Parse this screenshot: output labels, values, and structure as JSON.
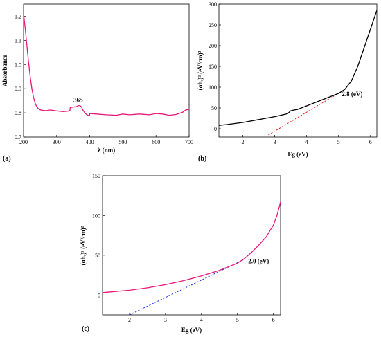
{
  "chart_data": [
    {
      "type": "line",
      "panel": "(a)",
      "xlabel": "λ (nm)",
      "ylabel": "Absorbance",
      "xlim": [
        200,
        700
      ],
      "ylim": [
        0.7,
        1.25
      ],
      "xticks": [
        "200",
        "300",
        "400",
        "500",
        "600",
        "700"
      ],
      "yticks": [
        "0.7",
        "0.8",
        "0.9",
        "1.0",
        "1.1",
        "1.2"
      ],
      "series": [
        {
          "color": "#e8177a",
          "x": [
            200,
            205,
            210,
            215,
            220,
            225,
            230,
            235,
            240,
            245,
            250,
            255,
            260,
            270,
            280,
            300,
            320,
            335,
            340,
            341,
            350,
            360,
            365,
            370,
            375,
            380,
            385,
            390,
            395,
            399,
            400,
            420,
            450,
            480,
            500,
            520,
            550,
            580,
            600,
            620,
            640,
            660,
            680,
            690,
            700
          ],
          "y": [
            1.21,
            1.15,
            1.08,
            1.01,
            0.95,
            0.9,
            0.865,
            0.84,
            0.825,
            0.817,
            0.813,
            0.811,
            0.81,
            0.809,
            0.812,
            0.808,
            0.805,
            0.807,
            0.81,
            0.822,
            0.824,
            0.826,
            0.83,
            0.83,
            0.825,
            0.81,
            0.8,
            0.793,
            0.79,
            0.788,
            0.797,
            0.795,
            0.792,
            0.79,
            0.795,
            0.792,
            0.795,
            0.792,
            0.797,
            0.795,
            0.79,
            0.793,
            0.802,
            0.812,
            0.815
          ]
        }
      ],
      "annotations": [
        {
          "text": "365",
          "x": 365,
          "y": 0.845
        }
      ]
    },
    {
      "type": "line",
      "panel": "(b)",
      "xlabel": "Eg (eV)",
      "ylabel": "(αhᵥ)² (eV/cm)²",
      "xlim": [
        1.25,
        6.2
      ],
      "ylim": [
        -20,
        300
      ],
      "xticks": [
        "2",
        "3",
        "4",
        "5",
        "6"
      ],
      "yticks": [
        "0",
        "50",
        "100",
        "150",
        "200",
        "250",
        "300"
      ],
      "series": [
        {
          "color": "#000000",
          "x": [
            1.25,
            1.5,
            2.0,
            2.5,
            3.0,
            3.4,
            3.5,
            3.6,
            3.7,
            4.0,
            4.5,
            5.0,
            5.2,
            5.4,
            5.6,
            5.8,
            6.0,
            6.2
          ],
          "y": [
            8,
            10,
            15,
            22,
            29,
            36,
            43,
            45,
            46,
            55,
            70,
            85,
            95,
            115,
            150,
            195,
            240,
            285
          ]
        }
      ],
      "fit_line": {
        "color": "#e8191a",
        "x": [
          2.8,
          5.1
        ],
        "y": [
          -15,
          90
        ]
      },
      "annotations": [
        {
          "text": "2.8 (eV)",
          "x": 5.1,
          "y": 78
        }
      ]
    },
    {
      "type": "line",
      "panel": "(c)",
      "xlabel": "Eg (eV)",
      "ylabel": "(αhᵥ)² (eV/cm)²",
      "xlim": [
        1.25,
        6.2
      ],
      "ylim": [
        -25,
        150
      ],
      "xticks": [
        "2",
        "3",
        "4",
        "5",
        "6"
      ],
      "yticks": [
        "0",
        "50",
        "100",
        "150"
      ],
      "series": [
        {
          "color": "#e8177a",
          "x": [
            1.25,
            1.5,
            2.0,
            2.5,
            3.0,
            3.5,
            4.0,
            4.5,
            5.0,
            5.2,
            5.4,
            5.6,
            5.8,
            6.0,
            6.1,
            6.2
          ],
          "y": [
            3,
            4,
            6,
            9,
            13,
            18,
            24,
            31,
            40,
            46,
            54,
            63,
            73,
            88,
            100,
            117
          ]
        }
      ],
      "fit_line": {
        "color": "#1a2ee0",
        "x": [
          2.0,
          5.2
        ],
        "y": [
          -25,
          45
        ]
      },
      "annotations": [
        {
          "text": "2.0 (eV)",
          "x": 5.3,
          "y": 40
        }
      ]
    }
  ]
}
